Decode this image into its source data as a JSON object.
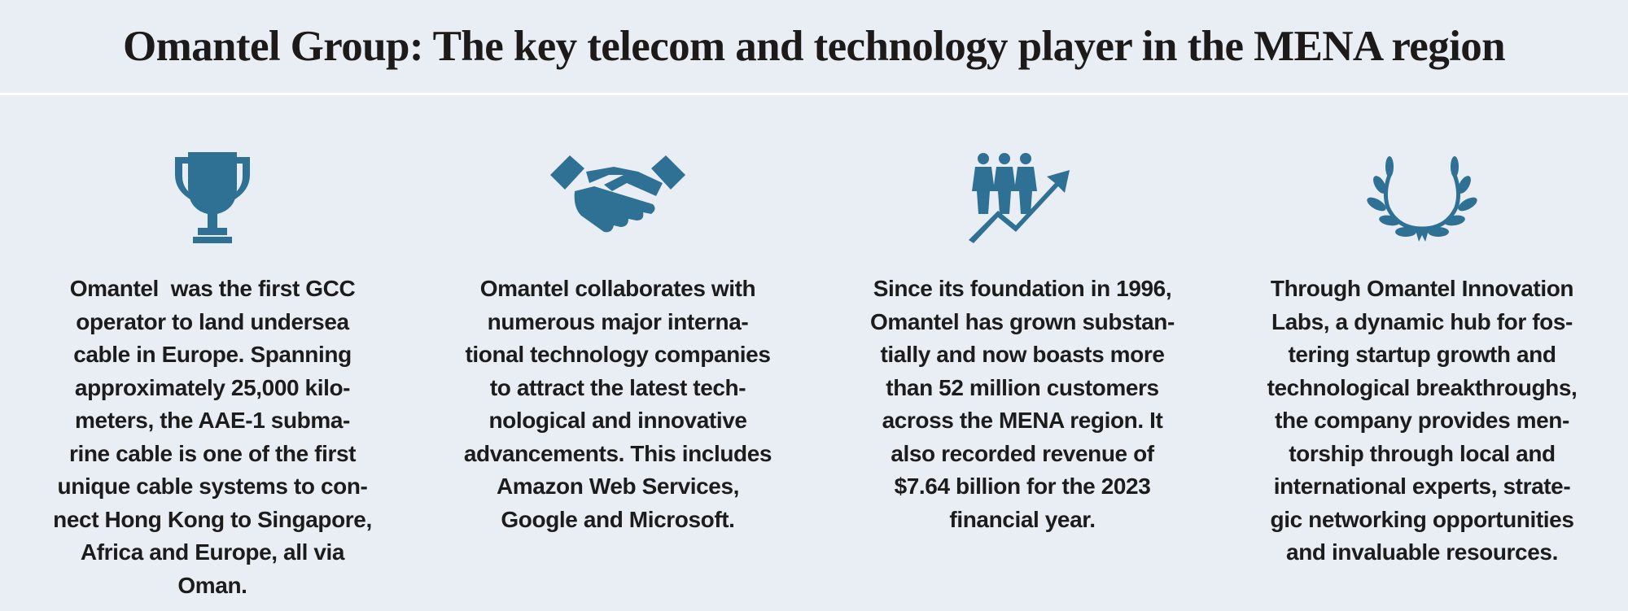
{
  "header": {
    "title": "Omantel Group: The key telecom and technology player in the MENA region"
  },
  "columns": [
    {
      "lines": [
        "Omantel  was the first GCC",
        "operator to land undersea",
        "cable in Europe. Spanning",
        "approximately 25,000 kilo-",
        "meters, the AAE-1 subma-",
        "rine cable is one of the first",
        "unique cable systems to con-",
        "nect Hong Kong to Singapore,",
        "Africa and Europe, all via",
        "Oman."
      ]
    },
    {
      "lines": [
        "Omantel collaborates with",
        "numerous major interna-",
        "tional technology companies",
        "to attract the latest tech-",
        "nological and innovative",
        "advancements. This includes",
        "Amazon Web Services,",
        "Google and Microsoft."
      ]
    },
    {
      "lines": [
        "Since its foundation in 1996,",
        "Omantel has grown substan-",
        "tially and now boasts more",
        "than 52 million customers",
        "across the MENA region. It",
        "also recorded revenue of",
        "$7.64 billion for the 2023",
        "financial year."
      ]
    },
    {
      "lines": [
        "Through Omantel Innovation",
        "Labs, a dynamic hub for fos-",
        "tering startup growth and",
        "technological breakthroughs,",
        "the company provides men-",
        "torship through local and",
        "international experts, strate-",
        "gic networking opportunities",
        "and invaluable resources."
      ]
    }
  ]
}
